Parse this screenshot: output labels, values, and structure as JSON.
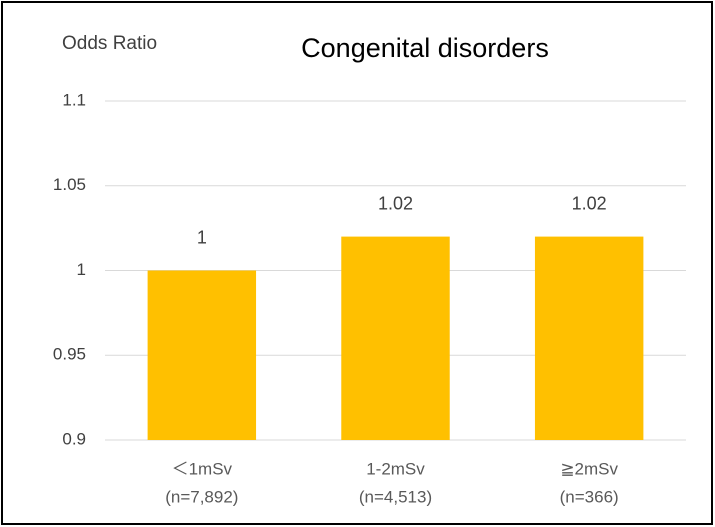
{
  "chart_data": {
    "type": "bar",
    "title": "Congenital disorders",
    "y_label": "Odds Ratio",
    "categories": [
      "＜1mSv",
      "1-2mSv",
      "≧2mSv"
    ],
    "sample_sizes": [
      "(n=7,892)",
      "(n=4,513)",
      "(n=366)"
    ],
    "values": [
      1,
      1.02,
      1.02
    ],
    "color": "#ffc000",
    "ylim": [
      0.9,
      1.1
    ],
    "yticks": [
      0.9,
      0.95,
      1,
      1.05,
      1.1
    ],
    "grid": true
  }
}
